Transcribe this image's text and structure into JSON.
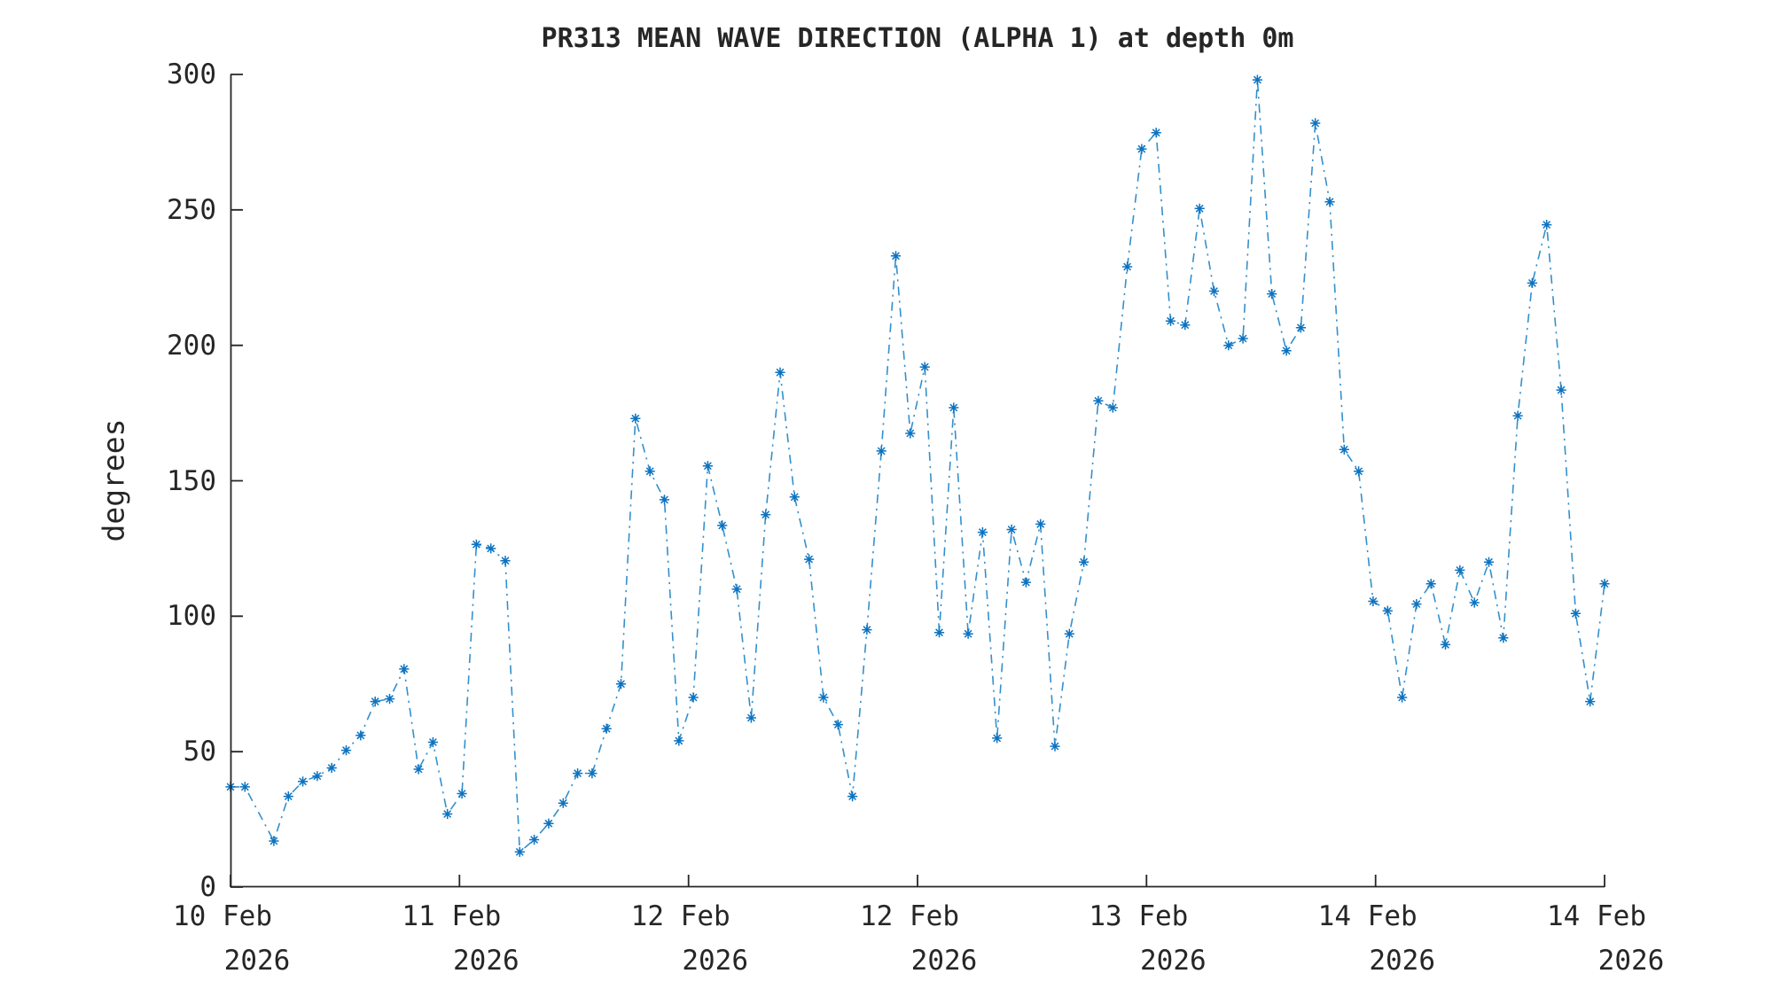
{
  "title": "PR313 MEAN WAVE DIRECTION (ALPHA 1) at depth 0m",
  "ylabel": "degrees",
  "colors": {
    "line": "#3390CD",
    "marker": "#0D73C0",
    "axis": "#262626",
    "text": "#262626",
    "background": "#FFFFFF"
  },
  "y_axis": {
    "ticks": [
      0,
      50,
      100,
      150,
      200,
      250,
      300
    ],
    "min": 0,
    "max": 300
  },
  "x_axis": {
    "ticks": [
      {
        "label": "10 Feb",
        "year": "2026",
        "pos": 0.0
      },
      {
        "label": "11 Feb",
        "year": "2026",
        "pos": 0.16667
      },
      {
        "label": "12 Feb",
        "year": "2026",
        "pos": 0.33333
      },
      {
        "label": "12 Feb",
        "year": "2026",
        "pos": 0.5
      },
      {
        "label": "13 Feb",
        "year": "2026",
        "pos": 0.66667
      },
      {
        "label": "14 Feb",
        "year": "2026",
        "pos": 0.83333
      },
      {
        "label": "14 Feb",
        "year": "2026",
        "pos": 1.0
      }
    ]
  },
  "chart_data": {
    "type": "line",
    "title": "PR313 MEAN WAVE DIRECTION (ALPHA 1) at depth 0m",
    "xlabel": "",
    "ylabel": "degrees",
    "ylim": [
      0,
      300
    ],
    "grid": false,
    "legend": "none",
    "line_style": "dash-dot",
    "marker": "asterisk",
    "x_unit": "hourly samples from 10 Feb 2026 (t=0, left axis) to 14 Feb 2026 (t=95, right axis); sample t=2 is missing",
    "t_max": 95,
    "points": [
      {
        "t": 0,
        "deg": 37
      },
      {
        "t": 1,
        "deg": 37
      },
      {
        "t": 3,
        "deg": 17
      },
      {
        "t": 4,
        "deg": 33.5
      },
      {
        "t": 5,
        "deg": 39
      },
      {
        "t": 6,
        "deg": 41
      },
      {
        "t": 7,
        "deg": 44
      },
      {
        "t": 8,
        "deg": 50.5
      },
      {
        "t": 9,
        "deg": 56
      },
      {
        "t": 10,
        "deg": 68.5
      },
      {
        "t": 11,
        "deg": 69.5
      },
      {
        "t": 12,
        "deg": 80.5
      },
      {
        "t": 13,
        "deg": 43.5
      },
      {
        "t": 14,
        "deg": 53.5
      },
      {
        "t": 15,
        "deg": 27
      },
      {
        "t": 16,
        "deg": 34.5
      },
      {
        "t": 17,
        "deg": 126.5
      },
      {
        "t": 18,
        "deg": 125
      },
      {
        "t": 19,
        "deg": 120.5
      },
      {
        "t": 20,
        "deg": 13
      },
      {
        "t": 21,
        "deg": 17.5
      },
      {
        "t": 22,
        "deg": 23.5
      },
      {
        "t": 23,
        "deg": 31
      },
      {
        "t": 24,
        "deg": 42
      },
      {
        "t": 25,
        "deg": 42
      },
      {
        "t": 26,
        "deg": 58.5
      },
      {
        "t": 27,
        "deg": 75
      },
      {
        "t": 28,
        "deg": 173
      },
      {
        "t": 29,
        "deg": 153.5
      },
      {
        "t": 30,
        "deg": 143
      },
      {
        "t": 31,
        "deg": 54
      },
      {
        "t": 32,
        "deg": 70
      },
      {
        "t": 33,
        "deg": 155.5
      },
      {
        "t": 34,
        "deg": 133.5
      },
      {
        "t": 35,
        "deg": 110
      },
      {
        "t": 36,
        "deg": 62.5
      },
      {
        "t": 37,
        "deg": 137.5
      },
      {
        "t": 38,
        "deg": 190
      },
      {
        "t": 39,
        "deg": 144
      },
      {
        "t": 40,
        "deg": 121
      },
      {
        "t": 41,
        "deg": 70
      },
      {
        "t": 42,
        "deg": 60
      },
      {
        "t": 43,
        "deg": 33.5
      },
      {
        "t": 44,
        "deg": 95
      },
      {
        "t": 45,
        "deg": 161
      },
      {
        "t": 46,
        "deg": 233
      },
      {
        "t": 47,
        "deg": 167.5
      },
      {
        "t": 48,
        "deg": 192
      },
      {
        "t": 49,
        "deg": 94
      },
      {
        "t": 50,
        "deg": 177
      },
      {
        "t": 51,
        "deg": 93.5
      },
      {
        "t": 52,
        "deg": 131
      },
      {
        "t": 53,
        "deg": 55
      },
      {
        "t": 54,
        "deg": 132
      },
      {
        "t": 55,
        "deg": 112.5
      },
      {
        "t": 56,
        "deg": 134
      },
      {
        "t": 57,
        "deg": 52
      },
      {
        "t": 58,
        "deg": 93.5
      },
      {
        "t": 59,
        "deg": 120
      },
      {
        "t": 60,
        "deg": 179.5
      },
      {
        "t": 61,
        "deg": 177
      },
      {
        "t": 62,
        "deg": 229
      },
      {
        "t": 63,
        "deg": 272.5
      },
      {
        "t": 64,
        "deg": 278.5
      },
      {
        "t": 65,
        "deg": 209
      },
      {
        "t": 66,
        "deg": 207.5
      },
      {
        "t": 67,
        "deg": 250.5
      },
      {
        "t": 68,
        "deg": 220
      },
      {
        "t": 69,
        "deg": 200
      },
      {
        "t": 70,
        "deg": 202.5
      },
      {
        "t": 71,
        "deg": 298
      },
      {
        "t": 72,
        "deg": 219
      },
      {
        "t": 73,
        "deg": 198
      },
      {
        "t": 74,
        "deg": 206.5
      },
      {
        "t": 75,
        "deg": 282
      },
      {
        "t": 76,
        "deg": 253
      },
      {
        "t": 77,
        "deg": 161.5
      },
      {
        "t": 78,
        "deg": 153.5
      },
      {
        "t": 79,
        "deg": 105.5
      },
      {
        "t": 80,
        "deg": 102
      },
      {
        "t": 81,
        "deg": 70
      },
      {
        "t": 82,
        "deg": 104.5
      },
      {
        "t": 83,
        "deg": 112
      },
      {
        "t": 84,
        "deg": 89.5
      },
      {
        "t": 85,
        "deg": 117
      },
      {
        "t": 86,
        "deg": 105
      },
      {
        "t": 87,
        "deg": 120
      },
      {
        "t": 88,
        "deg": 92
      },
      {
        "t": 89,
        "deg": 174
      },
      {
        "t": 90,
        "deg": 223
      },
      {
        "t": 91,
        "deg": 244.5
      },
      {
        "t": 92,
        "deg": 183.5
      },
      {
        "t": 93,
        "deg": 101
      },
      {
        "t": 94,
        "deg": 68.5
      },
      {
        "t": 95,
        "deg": 112
      }
    ]
  }
}
